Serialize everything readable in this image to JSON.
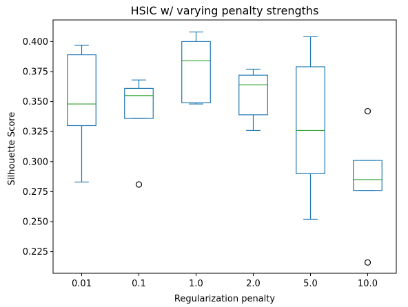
{
  "chart_data": {
    "type": "box",
    "title": "HSIC w/ varying penalty strengths",
    "xlabel": "Regularization penalty",
    "ylabel": "Silhouette Score",
    "categories": [
      "0.01",
      "0.1",
      "1.0",
      "2.0",
      "5.0",
      "10.0"
    ],
    "boxes": [
      {
        "whisker_low": 0.283,
        "q1": 0.33,
        "median": 0.348,
        "q3": 0.389,
        "whisker_high": 0.397,
        "outliers": []
      },
      {
        "whisker_low": 0.336,
        "q1": 0.336,
        "median": 0.355,
        "q3": 0.361,
        "whisker_high": 0.368,
        "outliers": [
          0.281
        ]
      },
      {
        "whisker_low": 0.348,
        "q1": 0.349,
        "median": 0.384,
        "q3": 0.4,
        "whisker_high": 0.408,
        "outliers": []
      },
      {
        "whisker_low": 0.326,
        "q1": 0.339,
        "median": 0.364,
        "q3": 0.372,
        "whisker_high": 0.377,
        "outliers": []
      },
      {
        "whisker_low": 0.252,
        "q1": 0.29,
        "median": 0.326,
        "q3": 0.379,
        "whisker_high": 0.404,
        "outliers": []
      },
      {
        "whisker_low": 0.276,
        "q1": 0.276,
        "median": 0.285,
        "q3": 0.301,
        "whisker_high": 0.301,
        "outliers": [
          0.342,
          0.216
        ]
      }
    ],
    "ylim": [
      0.207,
      0.418
    ],
    "yticks": [
      0.225,
      0.25,
      0.275,
      0.3,
      0.325,
      0.35,
      0.375,
      0.4
    ],
    "ytick_labels": [
      "0.225",
      "0.250",
      "0.275",
      "0.300",
      "0.325",
      "0.350",
      "0.375",
      "0.400"
    ],
    "grid": false,
    "colors": {
      "box": "#1f77b4",
      "median": "#2ca02c",
      "outlier": "#000000"
    }
  }
}
